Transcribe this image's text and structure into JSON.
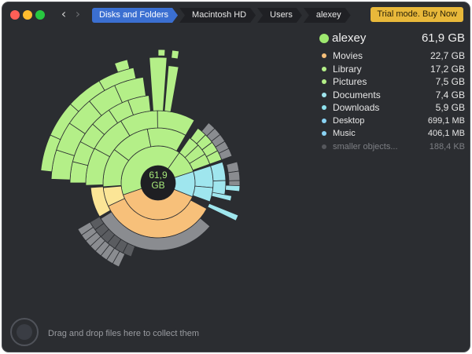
{
  "titlebar": {
    "breadcrumbs": [
      {
        "label": "Disks and Folders"
      },
      {
        "label": "Macintosh HD"
      },
      {
        "label": "Users"
      },
      {
        "label": "alexey"
      }
    ],
    "trial_button": "Trial mode. Buy Now"
  },
  "chart": {
    "center_value": "61,9",
    "center_unit": "GB"
  },
  "legend": {
    "header": {
      "name": "alexey",
      "size": "61,9 GB",
      "color": "#9ee86f"
    },
    "items": [
      {
        "name": "Movies",
        "size": "22,7 GB",
        "color": "#f7c07a"
      },
      {
        "name": "Library",
        "size": "17,2 GB",
        "color": "#b4ef88"
      },
      {
        "name": "Pictures",
        "size": "7,5 GB",
        "color": "#b4ef88"
      },
      {
        "name": "Documents",
        "size": "7,4 GB",
        "color": "#9fe6ee"
      },
      {
        "name": "Downloads",
        "size": "5,9 GB",
        "color": "#8ee2ee"
      },
      {
        "name": "Desktop",
        "size": "699,1  MB",
        "color": "#8ad3f4"
      },
      {
        "name": "Music",
        "size": "406,1  MB",
        "color": "#8ad3f4"
      },
      {
        "name": "smaller objects...",
        "size": "188,4  KB",
        "color": "#55575c"
      }
    ]
  },
  "footer": {
    "drop_text": "Drag and drop files here to collect them"
  }
}
